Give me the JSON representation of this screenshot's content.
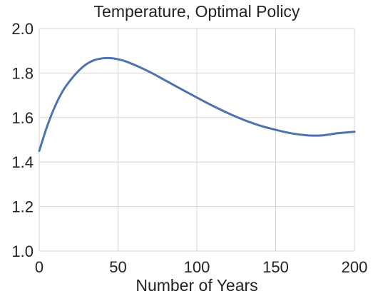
{
  "chart_data": {
    "type": "line",
    "title": "Temperature, Optimal Policy",
    "xlabel": "Number of Years",
    "ylabel": "",
    "xlim": [
      0,
      200
    ],
    "ylim": [
      1.0,
      2.0
    ],
    "xticks": [
      0,
      50,
      100,
      150,
      200
    ],
    "yticks": [
      1.0,
      1.2,
      1.4,
      1.6,
      1.8,
      2.0
    ],
    "xtick_labels": [
      "0",
      "50",
      "100",
      "150",
      "200"
    ],
    "ytick_labels": [
      "1.0",
      "1.2",
      "1.4",
      "1.6",
      "1.8",
      "2.0"
    ],
    "grid": true,
    "legend": "none",
    "series": [
      {
        "color": "#4c72b0",
        "x": [
          0,
          5,
          10,
          15,
          20,
          25,
          30,
          35,
          40,
          45,
          50,
          55,
          60,
          70,
          80,
          90,
          100,
          110,
          120,
          130,
          140,
          150,
          160,
          170,
          175,
          180,
          190,
          200
        ],
        "y": [
          1.45,
          1.56,
          1.65,
          1.72,
          1.77,
          1.81,
          1.84,
          1.858,
          1.866,
          1.867,
          1.862,
          1.852,
          1.838,
          1.805,
          1.767,
          1.728,
          1.69,
          1.653,
          1.619,
          1.589,
          1.564,
          1.545,
          1.529,
          1.52,
          1.519,
          1.52,
          1.53,
          1.536
        ]
      }
    ]
  }
}
